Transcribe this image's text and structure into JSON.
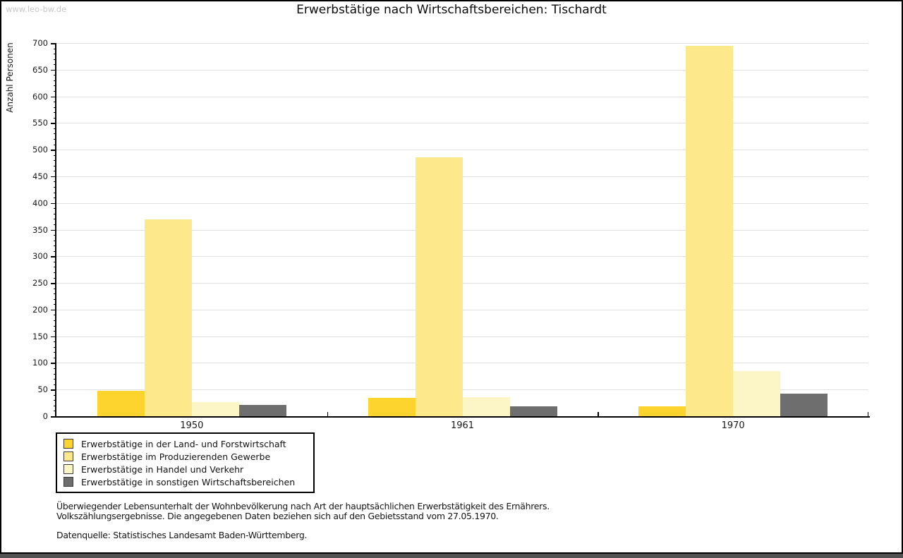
{
  "watermark": "www.leo-bw.de",
  "chart_data": {
    "type": "bar",
    "title": "Erwerbstätige nach Wirtschaftsbereichen: Tischardt",
    "ylabel": "Anzahl Personen",
    "xlabel": "",
    "ylim": [
      0,
      700
    ],
    "ytick_step": 50,
    "yminor_step": 10,
    "grid": true,
    "legend_position": "below-left",
    "categories": [
      "1950",
      "1961",
      "1970"
    ],
    "series": [
      {
        "name": "Erwerbstätige in der Land- und Forstwirtschaft",
        "color": "#FDD32E",
        "values": [
          48,
          34,
          18
        ]
      },
      {
        "name": "Erwerbstätige im Produzierenden Gewerbe",
        "color": "#FDE88C",
        "values": [
          369,
          485,
          695
        ]
      },
      {
        "name": "Erwerbstätige in Handel und Verkehr",
        "color": "#FCF5C5",
        "values": [
          27,
          36,
          85
        ]
      },
      {
        "name": "Erwerbstätige in sonstigen Wirtschaftsbereichen",
        "color": "#6E6E6E",
        "values": [
          21,
          18,
          42
        ]
      }
    ]
  },
  "notes": {
    "line1": "Überwiegender Lebensunterhalt der Wohnbevölkerung nach Art der hauptsächlichen Erwerbstätigkeit des Ernährers.",
    "line2": "Volkszählungsergebnisse. Die angegebenen Daten beziehen sich auf den Gebietsstand vom 27.05.1970.",
    "source": "Datenquelle: Statistisches Landesamt Baden-Württemberg."
  },
  "colors": {
    "grid": "#e0e0e0",
    "axis": "#000000",
    "watermark": "#c8c8c8",
    "bottom_strip": "#525252"
  }
}
